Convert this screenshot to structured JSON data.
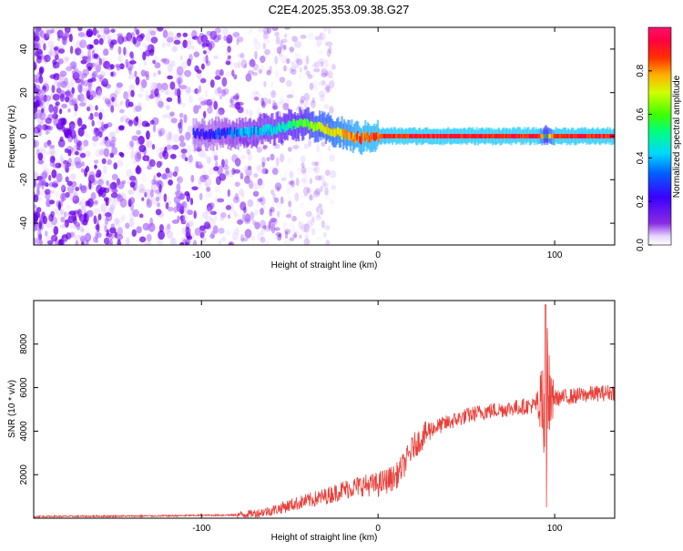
{
  "title": "C2E4.2025.353.09.38.G27",
  "colors": {
    "line": "#e8403a",
    "axis": "#000000",
    "noise": "#8a2be2",
    "background": "#ffffff"
  },
  "chart_data": [
    {
      "type": "heatmap",
      "name": "spectrogram",
      "xlabel": "Height of straight line (km)",
      "ylabel": "Frequency (Hz)",
      "xlim": [
        -195,
        134
      ],
      "ylim": [
        -50,
        50
      ],
      "xticks": [
        -100,
        0,
        100
      ],
      "yticks": [
        -40,
        -20,
        0,
        20,
        40
      ],
      "xtick_labels": [
        "-100",
        "0",
        "100"
      ],
      "ytick_labels": [
        "-40",
        "-20",
        "0",
        "20",
        "40"
      ],
      "colorbar": {
        "label": "Normalized spectral amplitude",
        "range": [
          0,
          1
        ],
        "ticks": [
          0,
          0.2,
          0.4,
          0.6,
          0.8
        ],
        "tick_labels": [
          "0.0",
          "0.2",
          "0.4",
          "0.6",
          "0.8"
        ],
        "colormap": "rainbow (white-violet-blue-cyan-green-yellow-orange-red-magenta)"
      },
      "signal_track": {
        "description": "narrow band of high amplitude near 0 Hz from about -105 km to the right edge",
        "x": [
          -105,
          -90,
          -75,
          -60,
          -50,
          -42,
          -35,
          -28,
          -20,
          -15,
          -10,
          -5,
          0,
          10,
          20,
          40,
          60,
          80,
          90,
          95,
          100,
          120,
          134
        ],
        "freq_hz": [
          1,
          1,
          2,
          3,
          5,
          6,
          4,
          3,
          1,
          0,
          -1,
          0,
          0,
          0,
          0,
          0,
          0,
          0,
          0,
          0,
          0,
          0,
          0
        ],
        "amplitude": [
          0.25,
          0.3,
          0.4,
          0.45,
          0.55,
          0.6,
          0.7,
          0.75,
          0.8,
          0.85,
          0.9,
          0.9,
          0.92,
          0.95,
          0.95,
          0.95,
          0.95,
          0.95,
          0.95,
          0.6,
          0.95,
          0.95,
          0.95
        ]
      },
      "noise_region": [
        -195,
        -45
      ]
    },
    {
      "type": "line",
      "name": "snr",
      "xlabel": "Height of straight line (km)",
      "ylabel": "SNR (10 * v/v)",
      "xlim": [
        -195,
        134
      ],
      "ylim": [
        0,
        10000
      ],
      "xticks": [
        -100,
        0,
        100
      ],
      "yticks": [
        2000,
        4000,
        6000,
        8000
      ],
      "xtick_labels": [
        "-100",
        "0",
        "100"
      ],
      "ytick_labels": [
        "2000",
        "4000",
        "6000",
        "8000"
      ],
      "series": [
        {
          "name": "SNR",
          "x": [
            -195,
            -160,
            -120,
            -80,
            -70,
            -60,
            -50,
            -40,
            -30,
            -20,
            -10,
            0,
            10,
            15,
            20,
            30,
            40,
            50,
            60,
            70,
            80,
            90,
            95,
            97,
            100,
            110,
            120,
            134
          ],
          "y": [
            80,
            90,
            110,
            150,
            220,
            350,
            600,
            800,
            1000,
            1300,
            1500,
            1550,
            1900,
            2500,
            3300,
            4100,
            4400,
            4700,
            4900,
            5000,
            5100,
            5200,
            5400,
            5600,
            5500,
            5600,
            5700,
            5800
          ]
        }
      ],
      "annotations": [
        {
          "x": 95,
          "note": "strong oscillation spike",
          "y_max": 9800,
          "y_min": 500
        }
      ]
    }
  ]
}
